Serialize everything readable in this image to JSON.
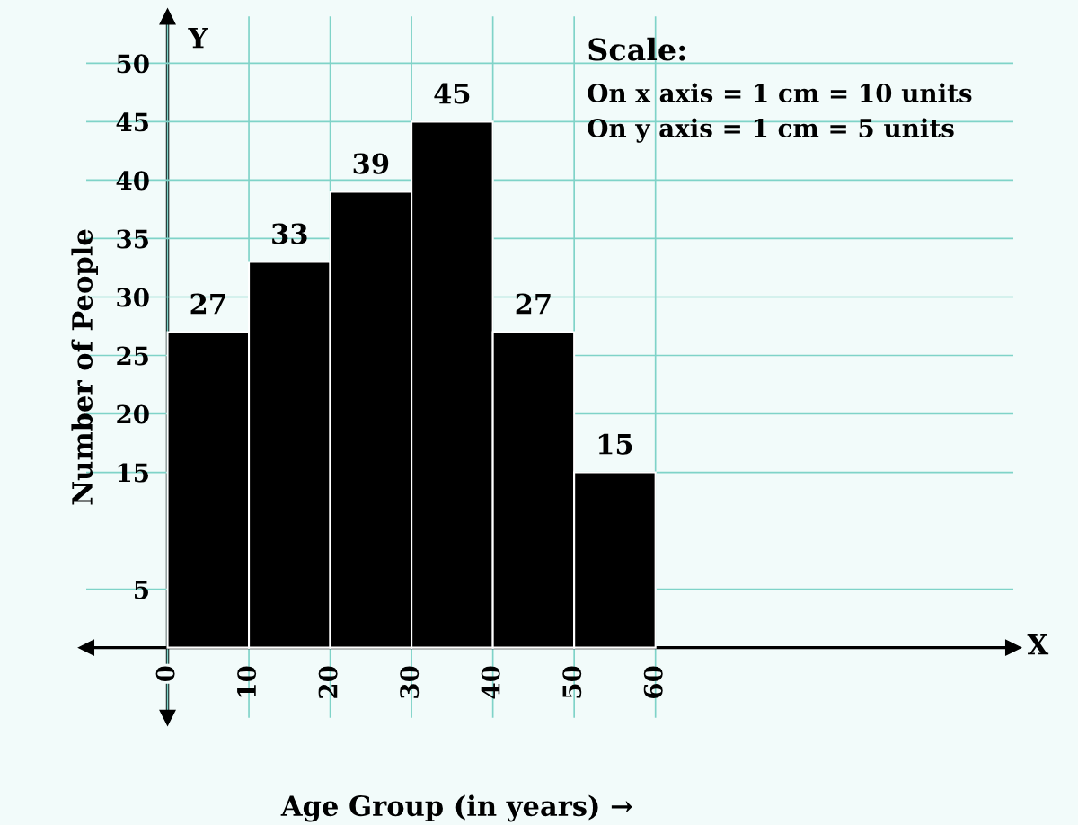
{
  "chart_data": {
    "type": "histogram",
    "xlabel": "Age Group (in years) →",
    "ylabel": "Number of People",
    "bins": [
      0,
      10,
      20,
      30,
      40,
      50,
      60
    ],
    "values": [
      27,
      33,
      39,
      45,
      27,
      15
    ],
    "color": "#000000",
    "data_labels": true,
    "grid": true,
    "xlim": [
      -10,
      104
    ],
    "ylim": [
      -6,
      54
    ],
    "xticks": [
      0,
      10,
      20,
      30,
      40,
      50,
      60
    ],
    "yticks": [
      5,
      15,
      20,
      25,
      30,
      35,
      40,
      45,
      50
    ],
    "annotations": [
      "Scale:",
      "On x axis = 1 cm = 10 units",
      "On y axis = 1 cm = 5 units",
      "Y",
      "X"
    ]
  }
}
